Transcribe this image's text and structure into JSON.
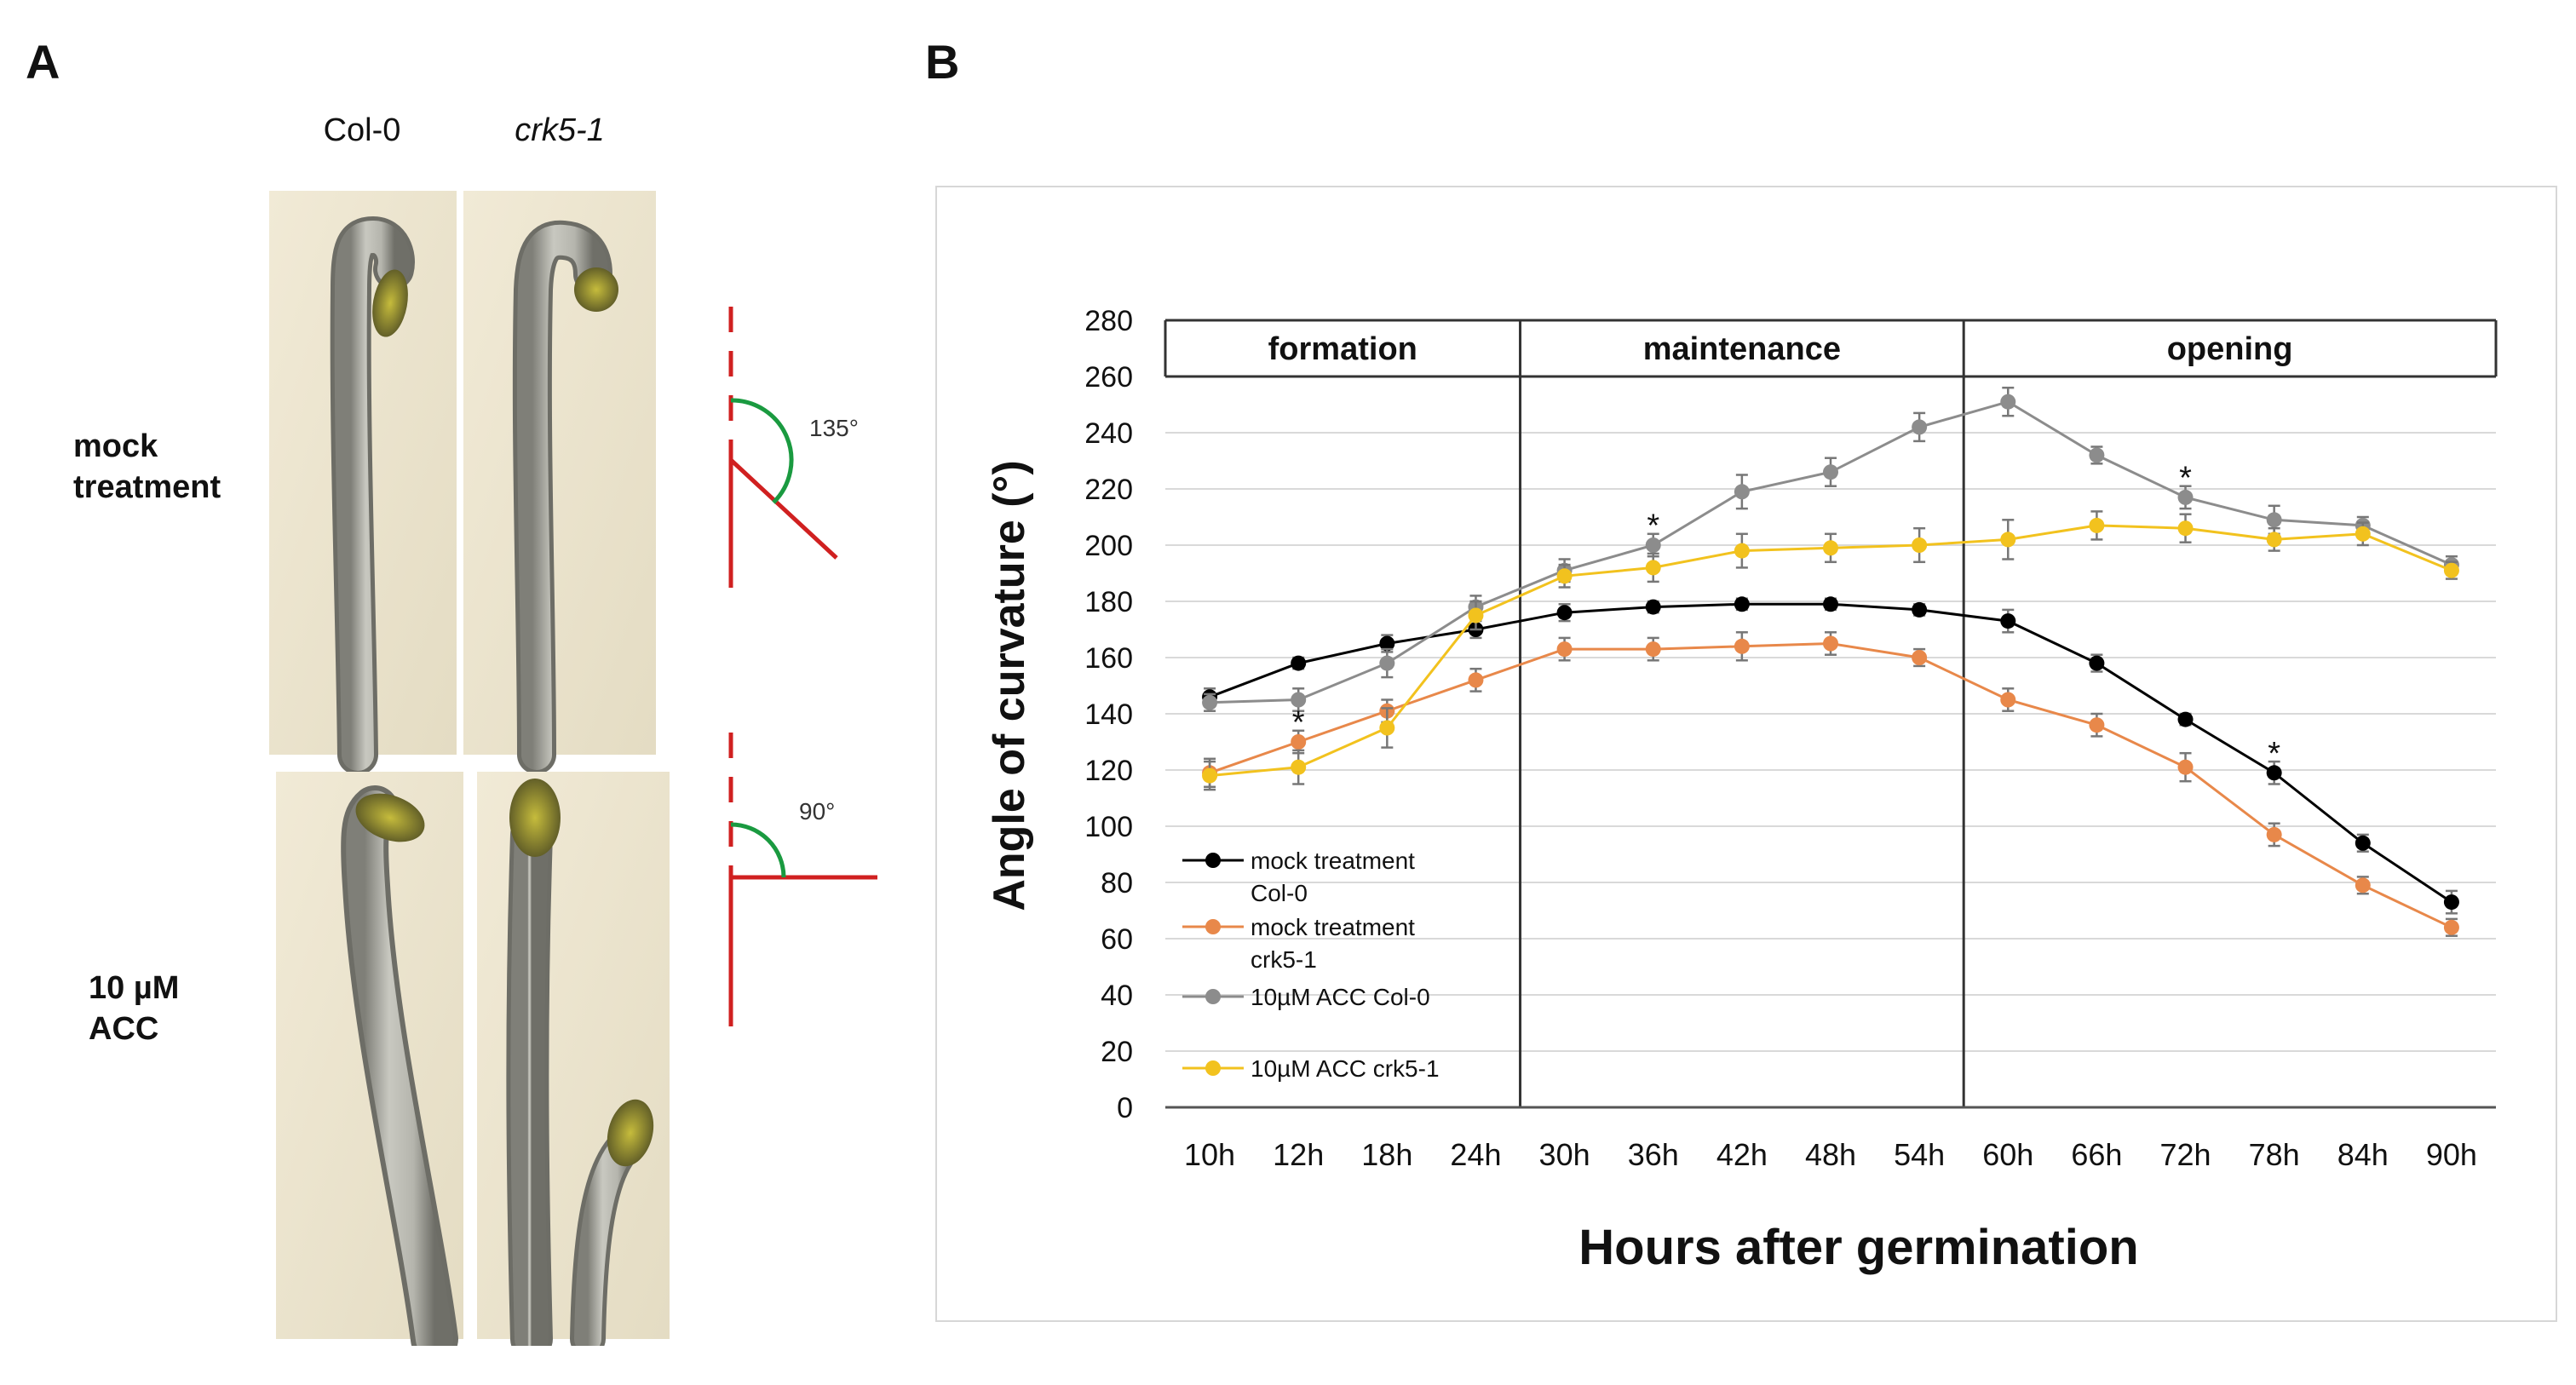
{
  "panels": {
    "a_letter": "A",
    "b_letter": "B",
    "col_labels": [
      "Col-0",
      "crk5-1"
    ],
    "row_labels": [
      [
        "mock",
        "treatment"
      ],
      [
        "10 µM",
        "ACC"
      ]
    ],
    "angle_labels": [
      "135°",
      "90°"
    ]
  },
  "colors": {
    "mock_col0": "#000000",
    "mock_crk": "#e8884a",
    "acc_col0": "#8c8c8c",
    "acc_crk": "#f2c21e",
    "angle_red": "#d02020",
    "angle_green": "#1a9a40"
  },
  "chart_data": {
    "type": "line",
    "xlabel": "Hours after germination",
    "ylabel": "Angle of curvature (°)",
    "ylim": [
      0,
      280
    ],
    "yticks": [
      0,
      20,
      40,
      60,
      80,
      100,
      120,
      140,
      160,
      180,
      200,
      220,
      240,
      260,
      280
    ],
    "categories": [
      "10h",
      "12h",
      "18h",
      "24h",
      "30h",
      "36h",
      "42h",
      "48h",
      "54h",
      "60h",
      "66h",
      "72h",
      "78h",
      "84h",
      "90h"
    ],
    "phases": [
      {
        "label": "formation",
        "from": 0,
        "to": 3
      },
      {
        "label": "maintenance",
        "from": 4,
        "to": 8
      },
      {
        "label": "opening",
        "from": 9,
        "to": 14
      }
    ],
    "grid": true,
    "legend_position": "bottom-left",
    "series": [
      {
        "name": "mock treatment Col-0",
        "legend_lines": [
          "mock treatment",
          "Col-0"
        ],
        "color": "#000000",
        "values": [
          146,
          158,
          165,
          170,
          176,
          178,
          179,
          179,
          177,
          173,
          158,
          138,
          119,
          94,
          73
        ],
        "errors": [
          3,
          2,
          3,
          3,
          3,
          2,
          2,
          2,
          2,
          4,
          3,
          2,
          4,
          3,
          4
        ]
      },
      {
        "name": "mock treatment crk5-1",
        "legend_lines": [
          "mock treatment",
          "crk5-1"
        ],
        "color": "#e8884a",
        "values": [
          119,
          130,
          141,
          152,
          163,
          163,
          164,
          165,
          160,
          145,
          136,
          121,
          97,
          79,
          64
        ],
        "errors": [
          5,
          4,
          4,
          4,
          4,
          4,
          5,
          4,
          3,
          4,
          4,
          5,
          4,
          3,
          3
        ]
      },
      {
        "name": "10µM ACC Col-0",
        "legend_lines": [
          "10µM ACC Col-0"
        ],
        "color": "#8c8c8c",
        "values": [
          144,
          145,
          158,
          178,
          191,
          200,
          219,
          226,
          242,
          251,
          232,
          217,
          209,
          207,
          193
        ],
        "errors": [
          3,
          4,
          5,
          4,
          4,
          4,
          6,
          5,
          5,
          5,
          3,
          4,
          5,
          3,
          3
        ]
      },
      {
        "name": "10µM ACC crk5-1",
        "legend_lines": [
          "10µM ACC crk5-1"
        ],
        "color": "#f2c21e",
        "values": [
          118,
          121,
          135,
          175,
          189,
          192,
          198,
          199,
          200,
          202,
          207,
          206,
          202,
          204,
          191
        ],
        "errors": [
          5,
          6,
          7,
          5,
          4,
          5,
          6,
          5,
          6,
          7,
          5,
          5,
          4,
          4,
          3
        ]
      }
    ],
    "annotations": [
      {
        "text": "*",
        "x": "12h",
        "y": 135
      },
      {
        "text": "*",
        "x": "36h",
        "y": 205
      },
      {
        "text": "*",
        "x": "72h",
        "y": 222
      },
      {
        "text": "*",
        "x": "78h",
        "y": 124
      }
    ]
  }
}
